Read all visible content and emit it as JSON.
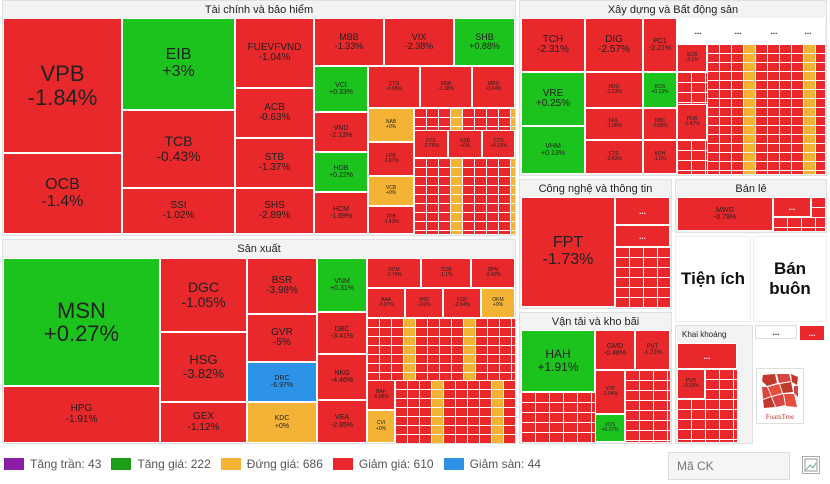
{
  "sectors": {
    "finance": "Tài chính và bảo hiểm",
    "realestate": "Xây dựng và Bất động sản",
    "production": "Sản xuất",
    "tech": "Công nghệ và thông tin",
    "retail": "Bán lẻ",
    "transport": "Vận tải và kho bãi",
    "mining": "Khai khoáng"
  },
  "labels": {
    "utilities": "Tiện ích",
    "wholesale": "Bán buôn",
    "more": "...",
    "foamtree": "FoamTree"
  },
  "tiles": {
    "VPB": {
      "sym": "VPB",
      "pct": "-1.84%"
    },
    "OCB": {
      "sym": "OCB",
      "pct": "-1.4%"
    },
    "EIB": {
      "sym": "EIB",
      "pct": "+3%"
    },
    "TCB": {
      "sym": "TCB",
      "pct": "-0.43%"
    },
    "SSI": {
      "sym": "SSI",
      "pct": "-1.02%"
    },
    "FUEVFVND": {
      "sym": "FUEVFVND",
      "pct": "-1.04%"
    },
    "ACB": {
      "sym": "ACB",
      "pct": "-0.63%"
    },
    "STB": {
      "sym": "STB",
      "pct": "-1.37%"
    },
    "SHS": {
      "sym": "SHS",
      "pct": "-2.89%"
    },
    "MBB": {
      "sym": "MBB",
      "pct": "-1.33%"
    },
    "VIX": {
      "sym": "VIX",
      "pct": "-2.38%"
    },
    "SHB": {
      "sym": "SHB",
      "pct": "+0.88%"
    },
    "VCI": {
      "sym": "VCI",
      "pct": "+0.33%"
    },
    "VND": {
      "sym": "VND",
      "pct": "-2.13%"
    },
    "HDB": {
      "sym": "HDB",
      "pct": "+0.22%"
    },
    "HCM": {
      "sym": "HCM",
      "pct": "-1.69%"
    },
    "CTG": {
      "sym": "CTG",
      "pct": "-0.96%"
    },
    "MSB": {
      "sym": "MSB",
      "pct": "-1.38%"
    },
    "MBS": {
      "sym": "MBS",
      "pct": "-0.64%"
    },
    "NAB": {
      "sym": "NAB",
      "pct": "+0%"
    },
    "LPB": {
      "sym": "LPB",
      "pct": "-1.87%"
    },
    "VCB": {
      "sym": "VCB",
      "pct": "+0%"
    },
    "FTS": {
      "sym": "FTS",
      "pct": "-2.75%"
    },
    "SSB": {
      "sym": "SSB",
      "pct": "+0%"
    },
    "CTS": {
      "sym": "CTS",
      "pct": "+0.13%"
    },
    "TPB": {
      "sym": "TPB",
      "pct": "-1.43%"
    },
    "TCH": {
      "sym": "TCH",
      "pct": "-2.31%"
    },
    "DIG": {
      "sym": "DIG",
      "pct": "-2.57%"
    },
    "PC1": {
      "sym": "PC1",
      "pct": "-2.21%"
    },
    "VRE": {
      "sym": "VRE",
      "pct": "+0.25%"
    },
    "VHM": {
      "sym": "VHM",
      "pct": "+0.13%"
    },
    "HDG": {
      "sym": "HDG",
      "pct": "-1.23%"
    },
    "NVL": {
      "sym": "NVL",
      "pct": "-1.36%"
    },
    "CTD": {
      "sym": "CTD",
      "pct": "-3.63%"
    },
    "KOS": {
      "sym": "KOS",
      "pct": "+0.13%"
    },
    "KBC": {
      "sym": "KBC",
      "pct": "-0.85%"
    },
    "KDH": {
      "sym": "KDH",
      "pct": "-1.5%"
    },
    "SCR": {
      "sym": "SCR",
      "pct": "-2.1%"
    },
    "PDR": {
      "sym": "PDR",
      "pct": "-2.47%"
    },
    "MSN": {
      "sym": "MSN",
      "pct": "+0.27%"
    },
    "HPG": {
      "sym": "HPG",
      "pct": "-1.91%"
    },
    "DGC": {
      "sym": "DGC",
      "pct": "-1.05%"
    },
    "HSG": {
      "sym": "HSG",
      "pct": "-3.82%"
    },
    "GEX": {
      "sym": "GEX",
      "pct": "-1.12%"
    },
    "BSR": {
      "sym": "BSR",
      "pct": "-3.98%"
    },
    "GVR": {
      "sym": "GVR",
      "pct": "-5%"
    },
    "DRC": {
      "sym": "DRC",
      "pct": "-6.97%"
    },
    "KDC": {
      "sym": "KDC",
      "pct": "+0%"
    },
    "VNM": {
      "sym": "VNM",
      "pct": "+0.31%"
    },
    "DBC": {
      "sym": "DBC",
      "pct": "-3.41%"
    },
    "NKG": {
      "sym": "NKG",
      "pct": "-4.46%"
    },
    "VEA": {
      "sym": "VEA",
      "pct": "-2.85%"
    },
    "DCM": {
      "sym": "DCM",
      "pct": "-2.74%"
    },
    "TCM": {
      "sym": "TCM",
      "pct": "-1.1%"
    },
    "DPM": {
      "sym": "DPM",
      "pct": "-2.43%"
    },
    "AAA": {
      "sym": "AAA",
      "pct": "-3.07%"
    },
    "VHC": {
      "sym": "VHC",
      "pct": "-2.6%"
    },
    "CSV": {
      "sym": "CSV",
      "pct": "-2.64%"
    },
    "OKM": {
      "sym": "OKM",
      "pct": "+0%"
    },
    "BAF": {
      "sym": "BAF",
      "pct": "-6.88%"
    },
    "CVI": {
      "sym": "CVI",
      "pct": "+0%"
    },
    "FPT": {
      "sym": "FPT",
      "pct": "-1.73%"
    },
    "MWG": {
      "sym": "MWG",
      "pct": "-0.79%"
    },
    "HAH": {
      "sym": "HAH",
      "pct": "+1.91%"
    },
    "GMD": {
      "sym": "GMD",
      "pct": "-0.48%"
    },
    "PVT": {
      "sym": "PVT",
      "pct": "-1.72%"
    },
    "VTP": {
      "sym": "VTP",
      "pct": "-3.04%"
    },
    "VOS": {
      "sym": "VOS",
      "pct": "+0.27%"
    },
    "PVD": {
      "sym": "PVD",
      "pct": "-3.19%"
    }
  },
  "legend": [
    {
      "label": "Tăng trần: 43",
      "color": "#8a1ea6"
    },
    {
      "label": "Tăng giá: 222",
      "color": "#1a9e1a"
    },
    {
      "label": "Đứng giá: 686",
      "color": "#f5b336"
    },
    {
      "label": "Giảm giá: 610",
      "color": "#e8282b"
    },
    {
      "label": "Giảm sàn: 44",
      "color": "#2d93e6"
    }
  ],
  "search": {
    "placeholder": "Mã CK"
  },
  "colors": {
    "up": "#1dc31d",
    "down": "#e8282b",
    "flat": "#f5b336",
    "floor": "#2d93e6",
    "ceiling": "#8a1ea6"
  }
}
